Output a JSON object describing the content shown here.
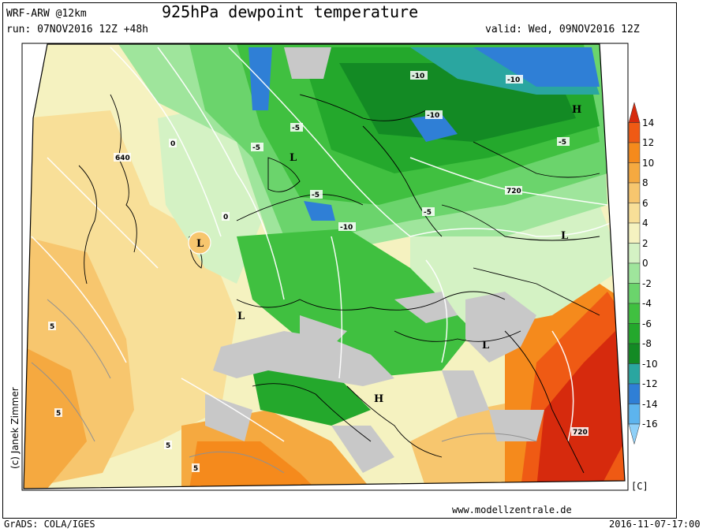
{
  "header": {
    "model": "WRF-ARW @12km",
    "title": "925hPa dewpoint temperature",
    "run": "run: 07NOV2016 12Z +48h",
    "valid": "valid: Wed, 09NOV2016 12Z"
  },
  "footer": {
    "software": "GrADS: COLA/IGES",
    "timestamp": "2016-11-07-17:00",
    "website": "www.modellzentrale.de",
    "credit": "(c) Janek Zimmer"
  },
  "legend": {
    "unit": "[C]",
    "levels": [
      "14",
      "12",
      "10",
      "8",
      "6",
      "4",
      "2",
      "0",
      "-2",
      "-4",
      "-6",
      "-8",
      "-10",
      "-12",
      "-14",
      "-16"
    ],
    "colors": [
      "#d62a0d",
      "#ef5a14",
      "#f58a1c",
      "#f5a940",
      "#f7c66e",
      "#f8df98",
      "#f5f2c0",
      "#d4f2c4",
      "#9fe59c",
      "#6bd46c",
      "#40c040",
      "#24a82c",
      "#138a24",
      "#2aa6a0",
      "#2f7fd6",
      "#5db4ee",
      "#8fd0f8"
    ]
  },
  "map": {
    "contour_labels": [
      "640",
      "720",
      "720",
      "-5",
      "-5",
      "-5",
      "-5",
      "-5",
      "-10",
      "-10",
      "-10",
      "-10",
      "0",
      "0",
      "5",
      "5",
      "5",
      "5"
    ],
    "pressure_centers": [
      "H",
      "H",
      "L",
      "L",
      "L",
      "L",
      "L"
    ]
  }
}
